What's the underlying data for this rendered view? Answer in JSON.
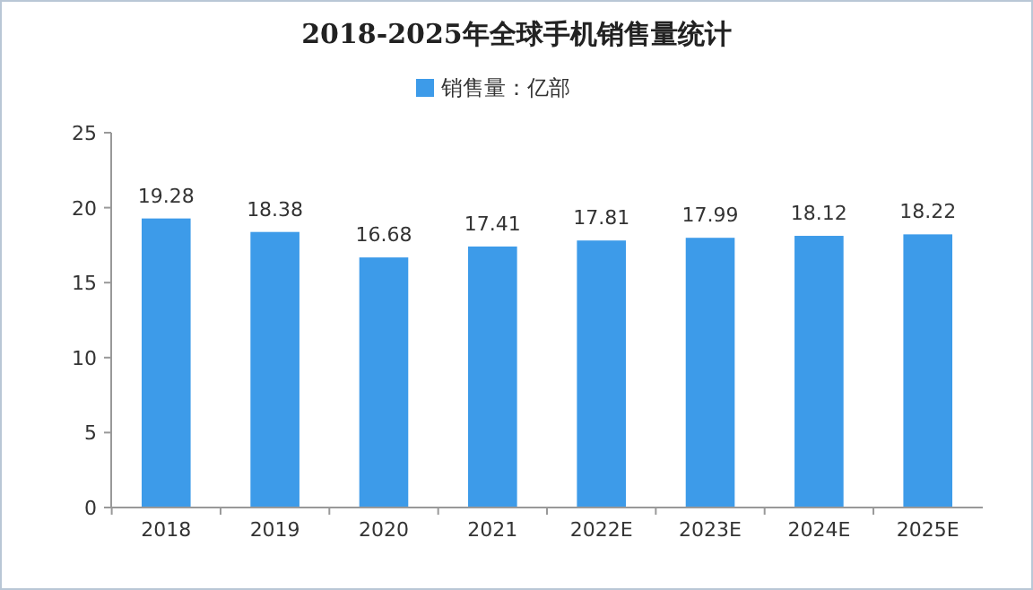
{
  "chart_data": {
    "type": "bar",
    "title": "2018-2025年全球手机销售量统计",
    "categories": [
      "2018",
      "2019",
      "2020",
      "2021",
      "2022E",
      "2023E",
      "2024E",
      "2025E"
    ],
    "series": [
      {
        "name": "销售量：亿部",
        "color": "#3d9be9",
        "values": [
          19.28,
          18.38,
          16.68,
          17.41,
          17.81,
          17.99,
          18.12,
          18.22
        ]
      }
    ],
    "ylim": [
      0,
      25
    ],
    "yticks": [
      0,
      5,
      10,
      15,
      20,
      25
    ],
    "data_labels": true,
    "legend": "top",
    "grid": false
  }
}
